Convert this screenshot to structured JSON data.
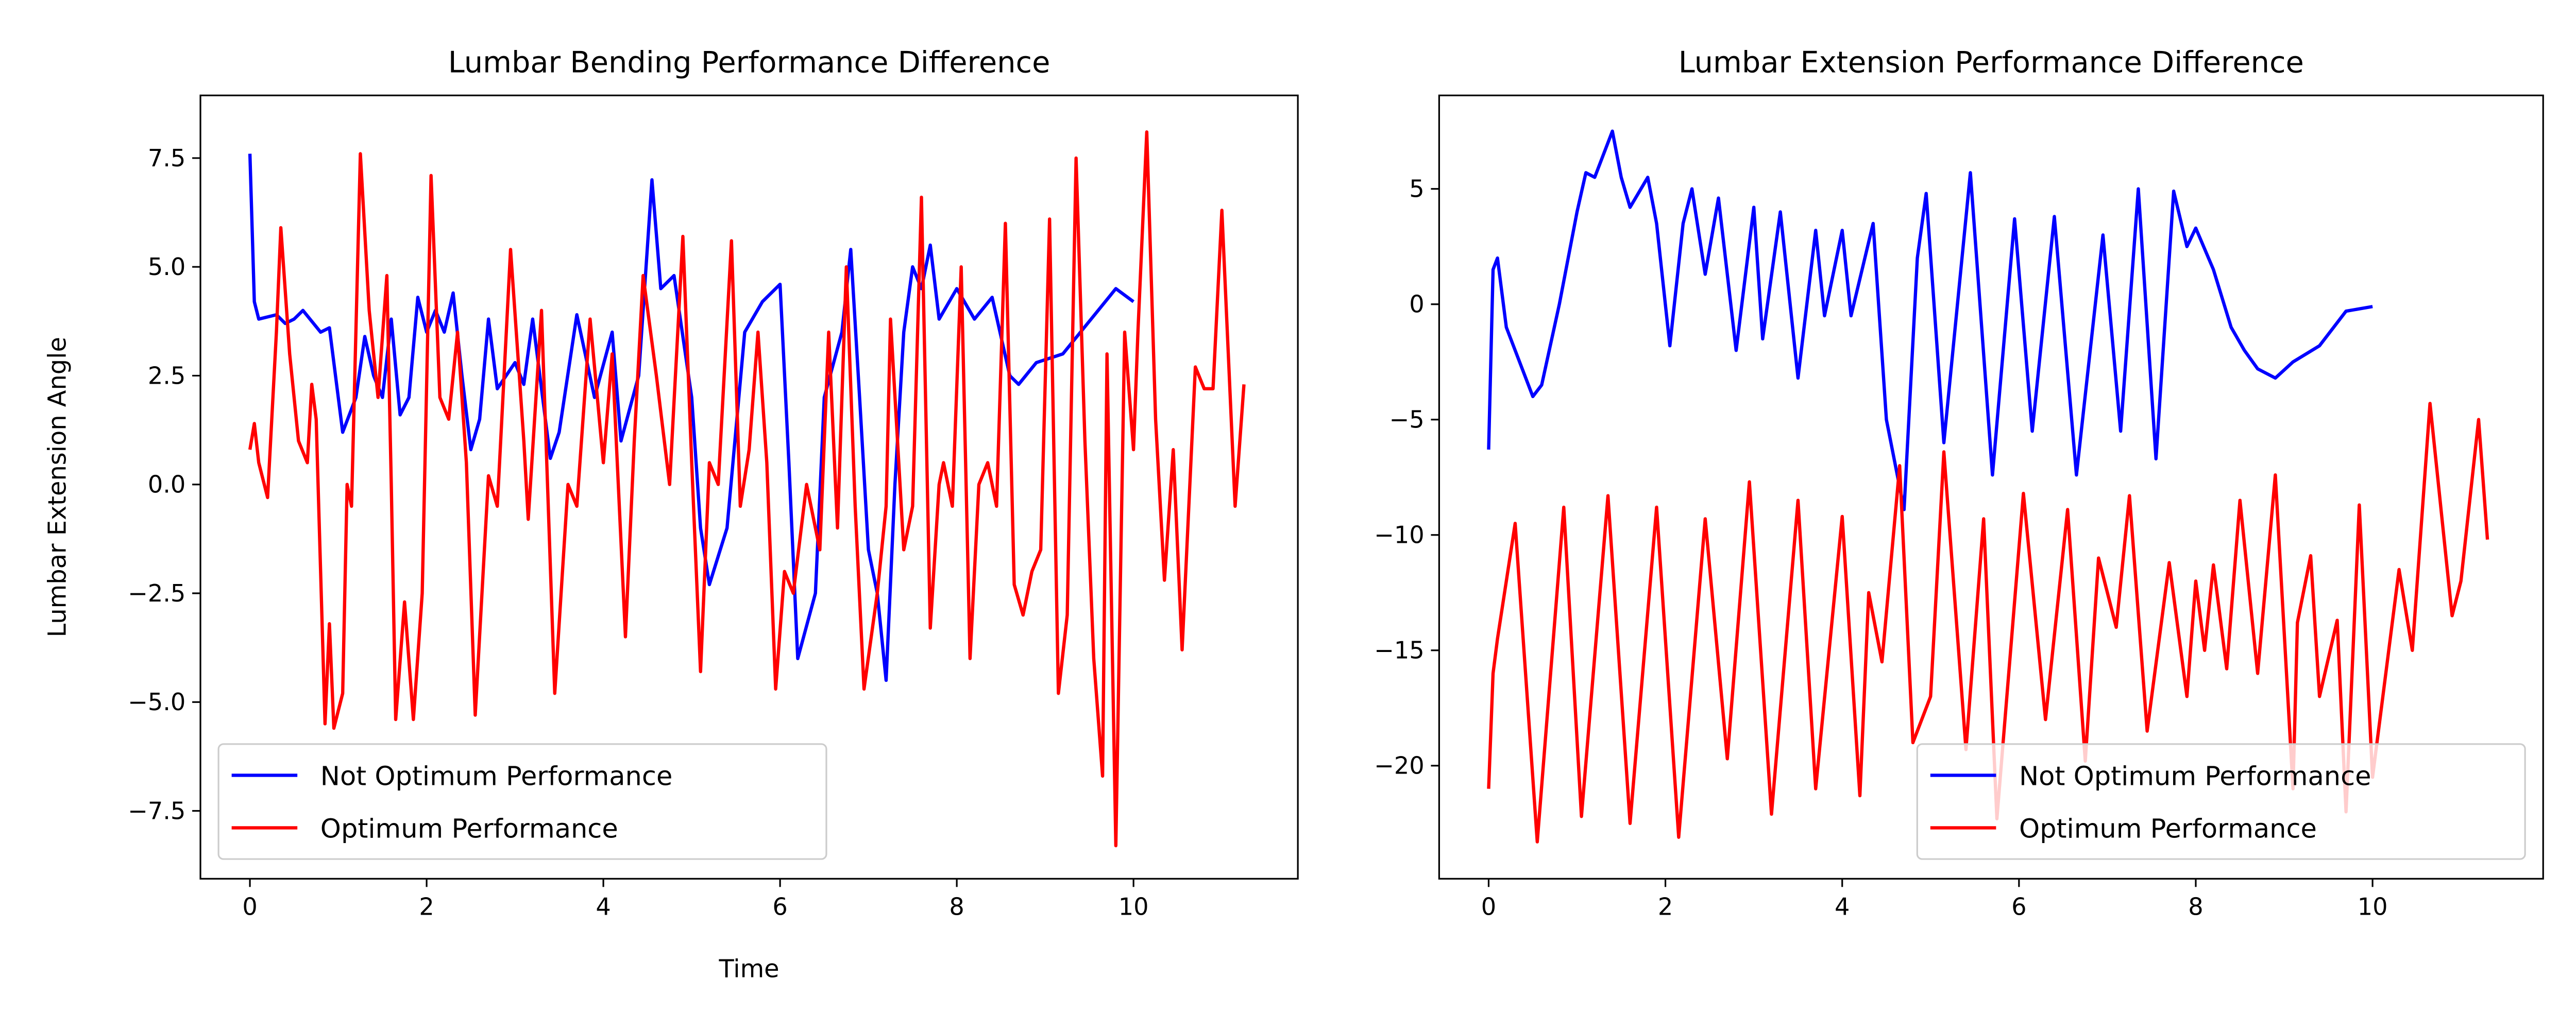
{
  "chart_data": [
    {
      "type": "line",
      "title": "Lumbar Bending Performance Difference",
      "xlabel": "Time",
      "ylabel": "Lumbar Extension Angle",
      "xlim": [
        -0.56,
        11.86
      ],
      "ylim": [
        -9.06,
        8.94
      ],
      "xticks": [
        0,
        2,
        4,
        6,
        8,
        10
      ],
      "yticks": [
        {
          "value": -7.5,
          "label": "−7.5"
        },
        {
          "value": -5,
          "label": "−5.0"
        },
        {
          "value": -2.5,
          "label": "−2.5"
        },
        {
          "value": 0,
          "label": "0.0"
        },
        2.5,
        {
          "value": 5,
          "label": "5.0"
        },
        7.5
      ],
      "legend": "lower left",
      "series": [
        {
          "name": "Not Optimum Performance",
          "color": "#0000ff",
          "x": [
            0,
            0.05,
            0.1,
            0.3,
            0.4,
            0.5,
            0.6,
            0.8,
            0.9,
            1.0,
            1.05,
            1.2,
            1.3,
            1.4,
            1.5,
            1.6,
            1.7,
            1.8,
            1.9,
            2.0,
            2.1,
            2.2,
            2.3,
            2.4,
            2.5,
            2.6,
            2.7,
            2.8,
            3.0,
            3.1,
            3.2,
            3.4,
            3.5,
            3.7,
            3.9,
            4.1,
            4.2,
            4.4,
            4.55,
            4.65,
            4.8,
            5.0,
            5.1,
            5.2,
            5.4,
            5.6,
            5.8,
            6.0,
            6.1,
            6.2,
            6.4,
            6.5,
            6.7,
            6.8,
            6.9,
            7.0,
            7.1,
            7.2,
            7.3,
            7.4,
            7.5,
            7.6,
            7.7,
            7.8,
            8.0,
            8.2,
            8.4,
            8.6,
            8.7,
            8.9,
            9.2,
            9.4,
            9.6,
            9.8,
            10.0
          ],
          "values": [
            7.6,
            4.2,
            3.8,
            3.9,
            3.7,
            3.8,
            4.0,
            3.5,
            3.6,
            2.0,
            1.2,
            2.0,
            3.4,
            2.5,
            2.0,
            3.8,
            1.6,
            2.0,
            4.3,
            3.5,
            4.0,
            3.5,
            4.4,
            2.5,
            0.8,
            1.5,
            3.8,
            2.2,
            2.8,
            2.3,
            3.8,
            0.6,
            1.2,
            3.9,
            2.0,
            3.5,
            1.0,
            2.5,
            7.0,
            4.5,
            4.8,
            2.0,
            -1.0,
            -2.3,
            -1.0,
            3.5,
            4.2,
            4.6,
            0.5,
            -4.0,
            -2.5,
            2.0,
            3.5,
            5.4,
            2.0,
            -1.5,
            -2.5,
            -4.5,
            0,
            3.5,
            5.0,
            4.5,
            5.5,
            3.8,
            4.5,
            3.8,
            4.3,
            2.5,
            2.3,
            2.8,
            3.0,
            3.5,
            4.0,
            4.5,
            4.2
          ]
        },
        {
          "name": "Optimum Performance",
          "color": "#ff0000",
          "x": [
            0,
            0.05,
            0.1,
            0.2,
            0.3,
            0.35,
            0.45,
            0.55,
            0.65,
            0.7,
            0.75,
            0.85,
            0.9,
            0.95,
            1.05,
            1.1,
            1.15,
            1.25,
            1.35,
            1.45,
            1.55,
            1.6,
            1.65,
            1.75,
            1.85,
            1.95,
            2.05,
            2.15,
            2.25,
            2.35,
            2.45,
            2.55,
            2.7,
            2.8,
            2.95,
            3.1,
            3.15,
            3.3,
            3.45,
            3.6,
            3.7,
            3.85,
            4.0,
            4.1,
            4.25,
            4.35,
            4.45,
            4.6,
            4.75,
            4.9,
            5.0,
            5.1,
            5.2,
            5.3,
            5.45,
            5.55,
            5.65,
            5.75,
            5.85,
            5.95,
            6.05,
            6.15,
            6.3,
            6.45,
            6.55,
            6.65,
            6.75,
            6.85,
            6.95,
            7.1,
            7.2,
            7.25,
            7.4,
            7.5,
            7.6,
            7.7,
            7.8,
            7.85,
            7.95,
            8.05,
            8.15,
            8.25,
            8.35,
            8.45,
            8.55,
            8.65,
            8.75,
            8.85,
            8.95,
            9.05,
            9.15,
            9.25,
            9.35,
            9.45,
            9.55,
            9.65,
            9.7,
            9.8,
            9.9,
            10.0,
            10.05,
            10.15,
            10.25,
            10.35,
            10.45,
            10.55,
            10.7,
            10.8,
            10.9,
            11.0,
            11.15,
            11.25
          ],
          "values": [
            0.8,
            1.4,
            0.5,
            -0.3,
            3.5,
            5.9,
            3.0,
            1.0,
            0.5,
            2.3,
            1.5,
            -5.5,
            -3.2,
            -5.6,
            -4.8,
            0,
            -0.5,
            7.6,
            4.0,
            2.0,
            4.8,
            0,
            -5.4,
            -2.7,
            -5.4,
            -2.5,
            7.1,
            2.0,
            1.5,
            3.5,
            0.5,
            -5.3,
            0.2,
            -0.5,
            5.4,
            1.0,
            -0.8,
            4.0,
            -4.8,
            0,
            -0.5,
            3.8,
            0.5,
            3.0,
            -3.5,
            1.0,
            4.8,
            2.5,
            0,
            5.7,
            0.5,
            -4.3,
            0.5,
            0,
            5.6,
            -0.5,
            0.8,
            3.5,
            0.5,
            -4.7,
            -2.0,
            -2.5,
            0,
            -1.5,
            3.5,
            -1.0,
            5.0,
            -0.5,
            -4.7,
            -2.5,
            -0.5,
            3.8,
            -1.5,
            -0.5,
            6.6,
            -3.3,
            0,
            0.5,
            -0.5,
            5.0,
            -4.0,
            0,
            0.5,
            -0.5,
            6.0,
            -2.3,
            -3.0,
            -2.0,
            -1.5,
            6.1,
            -4.8,
            -3.0,
            7.5,
            1.0,
            -4.0,
            -6.7,
            3.0,
            -8.3,
            3.5,
            0.8,
            3.5,
            8.1,
            1.5,
            -2.2,
            0.8,
            -3.8,
            2.7,
            2.2,
            2.2,
            6.3,
            -0.5,
            2.3
          ]
        }
      ]
    },
    {
      "type": "line",
      "title": "Lumbar Extension Performance Difference",
      "xlim": [
        -0.56,
        11.93
      ],
      "ylim": [
        -24.9,
        9.05
      ],
      "xticks": [
        0,
        2,
        4,
        6,
        8,
        10
      ],
      "yticks": [
        {
          "value": -20,
          "label": "−20"
        },
        {
          "value": -15,
          "label": "−15"
        },
        {
          "value": -10,
          "label": "−10"
        },
        {
          "value": -5,
          "label": "−5"
        },
        0,
        5
      ],
      "legend": "lower right",
      "series": [
        {
          "name": "Not Optimum Performance",
          "color": "#0000ff",
          "x": [
            0,
            0.05,
            0.1,
            0.2,
            0.4,
            0.5,
            0.6,
            0.8,
            1.0,
            1.1,
            1.2,
            1.3,
            1.4,
            1.5,
            1.6,
            1.8,
            1.9,
            2.05,
            2.2,
            2.3,
            2.45,
            2.6,
            2.8,
            3.0,
            3.1,
            3.3,
            3.5,
            3.7,
            3.8,
            4.0,
            4.1,
            4.35,
            4.5,
            4.7,
            4.85,
            4.95,
            5.15,
            5.45,
            5.7,
            5.95,
            6.15,
            6.4,
            6.65,
            6.95,
            7.15,
            7.35,
            7.55,
            7.75,
            7.9,
            8.0,
            8.2,
            8.4,
            8.55,
            8.7,
            8.9,
            9.1,
            9.4,
            9.7,
            10.0
          ],
          "values": [
            -6.3,
            1.5,
            2.0,
            -1.0,
            -3.0,
            -4.0,
            -3.5,
            0,
            4.0,
            5.7,
            5.5,
            6.5,
            7.5,
            5.5,
            4.2,
            5.5,
            3.5,
            -1.8,
            3.5,
            5.0,
            1.3,
            4.6,
            -2.0,
            4.2,
            -1.5,
            4.0,
            -3.2,
            3.2,
            -0.5,
            3.2,
            -0.5,
            3.5,
            -5,
            -8.9,
            2.0,
            4.8,
            -6.0,
            5.7,
            -7.4,
            3.7,
            -5.5,
            3.8,
            -7.4,
            3.0,
            -5.5,
            5.0,
            -6.7,
            4.9,
            2.5,
            3.3,
            1.5,
            -1.0,
            -2.0,
            -2.8,
            -3.2,
            -2.5,
            -1.8,
            -0.3,
            -0.1
          ]
        },
        {
          "name": "Optimum Performance",
          "color": "#ff0000",
          "x": [
            0,
            0.05,
            0.1,
            0.2,
            0.3,
            0.55,
            0.85,
            1.05,
            1.35,
            1.6,
            1.9,
            2.15,
            2.45,
            2.7,
            2.95,
            3.2,
            3.5,
            3.7,
            4.0,
            4.2,
            4.3,
            4.45,
            4.65,
            4.8,
            5.0,
            5.15,
            5.4,
            5.6,
            5.75,
            6.05,
            6.3,
            6.55,
            6.75,
            6.9,
            7.1,
            7.25,
            7.45,
            7.7,
            7.9,
            8.0,
            8.1,
            8.2,
            8.35,
            8.5,
            8.7,
            8.9,
            9.1,
            9.15,
            9.3,
            9.4,
            9.6,
            9.7,
            9.85,
            10.0,
            10.3,
            10.45,
            10.65,
            10.9,
            11.0,
            11.2,
            11.3
          ],
          "values": [
            -21,
            -16,
            -14.5,
            -12,
            -9.5,
            -23.3,
            -8.8,
            -22.2,
            -8.3,
            -22.5,
            -8.8,
            -23.1,
            -9.3,
            -19.7,
            -7.7,
            -22.1,
            -8.5,
            -21,
            -9.2,
            -21.3,
            -12.5,
            -15.5,
            -7.0,
            -19,
            -17,
            -6.4,
            -19.3,
            -9.3,
            -22.3,
            -8.2,
            -18.0,
            -8.9,
            -19.8,
            -11,
            -14,
            -8.3,
            -18.5,
            -11.2,
            -17,
            -12,
            -15,
            -11.3,
            -15.8,
            -8.5,
            -16,
            -7.4,
            -21,
            -13.8,
            -10.9,
            -17,
            -13.7,
            -22,
            -8.7,
            -20.5,
            -11.5,
            -15,
            -4.3,
            -13.5,
            -12,
            -5.0,
            -10.2
          ]
        }
      ]
    }
  ]
}
